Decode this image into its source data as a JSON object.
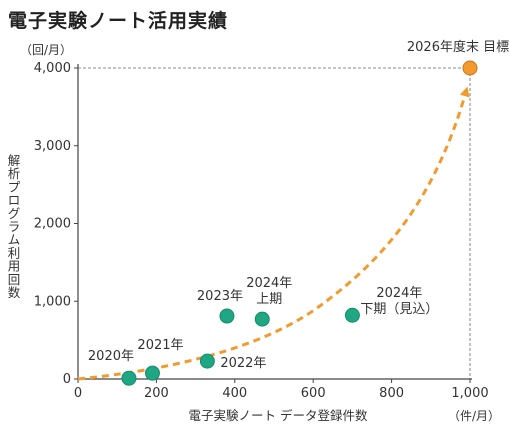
{
  "chart_data": {
    "type": "scatter",
    "title": "電子実験ノート活用実績",
    "xlabel": "電子実験ノート データ登録件数",
    "xunit": "（件/月）",
    "ylabel": "解析プログラム利用回数",
    "yunit": "（回/月）",
    "xlim": [
      0,
      1000
    ],
    "ylim": [
      0,
      4000
    ],
    "xticks": [
      0,
      200,
      400,
      600,
      800,
      1000
    ],
    "xtick_labels": [
      "0",
      "200",
      "400",
      "600",
      "800",
      "1,000"
    ],
    "yticks": [
      0,
      1000,
      2000,
      3000,
      4000
    ],
    "ytick_labels": [
      "0",
      "1,000",
      "2,000",
      "3,000",
      "4,000"
    ],
    "grid": false,
    "points": [
      {
        "label": "2020年",
        "x": 130,
        "y": 10,
        "color": "#1fa783"
      },
      {
        "label": "2021年",
        "x": 190,
        "y": 75,
        "color": "#1fa783"
      },
      {
        "label": "2022年",
        "x": 330,
        "y": 230,
        "color": "#1fa783"
      },
      {
        "label": "2023年",
        "x": 380,
        "y": 810,
        "color": "#1fa783"
      },
      {
        "label": "2024年\n上期",
        "x": 470,
        "y": 770,
        "color": "#1fa783"
      },
      {
        "label": "2024年\n下期（見込）",
        "x": 700,
        "y": 820,
        "color": "#1fa783"
      },
      {
        "label": "2026年度末 目標",
        "x": 1000,
        "y": 4000,
        "color": "#f39a2e"
      }
    ],
    "trend_color": "#f39a2e"
  }
}
